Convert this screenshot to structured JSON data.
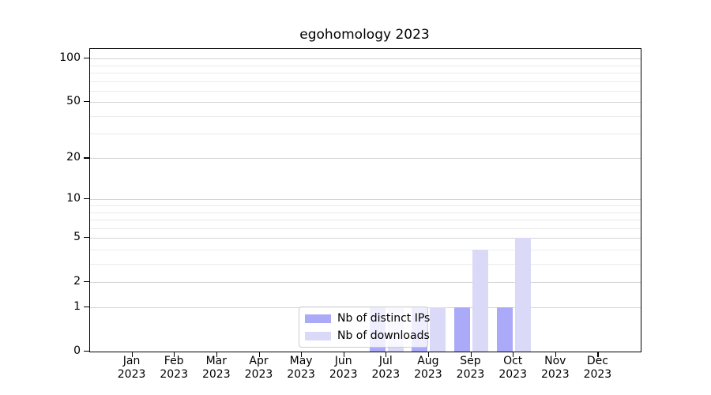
{
  "chart_data": {
    "type": "bar",
    "title": "egohomology 2023",
    "categories": [
      {
        "month": "Jan",
        "year": "2023"
      },
      {
        "month": "Feb",
        "year": "2023"
      },
      {
        "month": "Mar",
        "year": "2023"
      },
      {
        "month": "Apr",
        "year": "2023"
      },
      {
        "month": "May",
        "year": "2023"
      },
      {
        "month": "Jun",
        "year": "2023"
      },
      {
        "month": "Jul",
        "year": "2023"
      },
      {
        "month": "Aug",
        "year": "2023"
      },
      {
        "month": "Sep",
        "year": "2023"
      },
      {
        "month": "Oct",
        "year": "2023"
      },
      {
        "month": "Nov",
        "year": "2023"
      },
      {
        "month": "Dec",
        "year": "2023"
      }
    ],
    "series": [
      {
        "name": "Nb of distinct IPs",
        "color": "#aaaaf8",
        "values": [
          0,
          0,
          0,
          0,
          0,
          0,
          1,
          1,
          1,
          1,
          0,
          0
        ]
      },
      {
        "name": "Nb of downloads",
        "color": "#dadaf8",
        "values": [
          0,
          0,
          0,
          0,
          0,
          0,
          1,
          1,
          4,
          5,
          0,
          0
        ]
      }
    ],
    "yscale": "log1p",
    "ylim": [
      0,
      100
    ],
    "yticks_major": [
      0,
      1,
      2,
      5,
      10,
      20,
      50,
      100
    ],
    "yticks_minor": [
      3,
      4,
      6,
      7,
      8,
      9,
      30,
      40,
      60,
      70,
      80,
      90
    ],
    "grid": true,
    "legend_position": "lower center"
  }
}
